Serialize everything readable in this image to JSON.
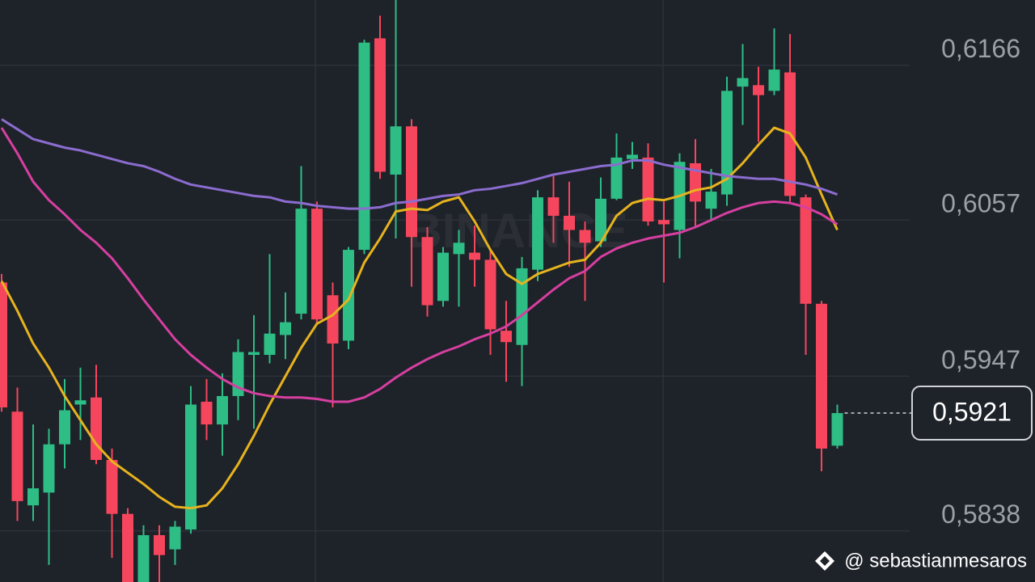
{
  "chart_data": {
    "type": "candlestick",
    "ylim": [
      0.5802,
      0.6212
    ],
    "yticks": [
      {
        "value": 0.6166,
        "label": "0,6166"
      },
      {
        "value": 0.6057,
        "label": "0,6057"
      },
      {
        "value": 0.5947,
        "label": "0,5947"
      },
      {
        "value": 0.5838,
        "label": "0,5838"
      }
    ],
    "grid": true,
    "up_color": "#2ebd85",
    "down_color": "#f6465d",
    "open": [
      0.6013,
      0.5922,
      0.5856,
      0.5865,
      0.5899,
      0.5927,
      0.5932,
      0.5888,
      0.585,
      0.5802,
      0.5835,
      0.5825,
      0.5839,
      0.5929,
      0.5913,
      0.5933,
      0.5962,
      0.5962,
      0.5976,
      0.5991,
      0.6065,
      0.6004,
      0.5972,
      0.6036,
      0.6185,
      0.6089,
      0.6123,
      0.6045,
      0.6,
      0.6033,
      0.6034,
      0.6029,
      0.5979,
      0.5969,
      0.6022,
      0.6073,
      0.606,
      0.605,
      0.6042,
      0.6072,
      0.61,
      0.6101,
      0.6057,
      0.605,
      0.6097,
      0.6065,
      0.6075,
      0.6151,
      0.6152,
      0.6148,
      0.6161,
      0.6073,
      0.5998,
      0.5898
    ],
    "high": [
      0.6019,
      0.5939,
      0.5913,
      0.591,
      0.5945,
      0.5953,
      0.5955,
      0.5896,
      0.5854,
      0.5842,
      0.5842,
      0.5845,
      0.594,
      0.5945,
      0.5949,
      0.5973,
      0.599,
      0.6033,
      0.6006,
      0.6095,
      0.607,
      0.6013,
      0.6038,
      0.6184,
      0.6201,
      0.6212,
      0.6128,
      0.6052,
      0.6038,
      0.605,
      0.6053,
      0.6036,
      0.6,
      0.6031,
      0.6078,
      0.6088,
      0.6084,
      0.6056,
      0.6087,
      0.6118,
      0.6112,
      0.6111,
      0.607,
      0.6104,
      0.6114,
      0.6093,
      0.6158,
      0.6181,
      0.6165,
      0.6192,
      0.6188,
      0.6075,
      0.6,
      0.5927
    ],
    "low": [
      0.5922,
      0.5845,
      0.5845,
      0.5814,
      0.5882,
      0.5902,
      0.5885,
      0.5819,
      0.5802,
      0.5802,
      0.5802,
      0.5814,
      0.5836,
      0.5902,
      0.5891,
      0.5916,
      0.591,
      0.5956,
      0.5959,
      0.5987,
      0.5984,
      0.5925,
      0.5966,
      0.6033,
      0.6086,
      0.6044,
      0.601,
      0.5989,
      0.5996,
      0.5996,
      0.601,
      0.5962,
      0.5943,
      0.594,
      0.6014,
      0.6041,
      0.6024,
      0.6,
      0.6038,
      0.6071,
      0.6093,
      0.6053,
      0.6013,
      0.603,
      0.6052,
      0.6056,
      0.6067,
      0.6124,
      0.6112,
      0.6145,
      0.607,
      0.5962,
      0.588,
      0.5896
    ],
    "close": [
      0.5925,
      0.5859,
      0.5868,
      0.5899,
      0.5923,
      0.593,
      0.5888,
      0.585,
      0.5802,
      0.5835,
      0.5821,
      0.5841,
      0.5927,
      0.5913,
      0.5933,
      0.5964,
      0.5964,
      0.5977,
      0.5985,
      0.6065,
      0.5987,
      0.597,
      0.6036,
      0.6182,
      0.6091,
      0.6123,
      0.6045,
      0.5997,
      0.6034,
      0.6041,
      0.6029,
      0.598,
      0.5971,
      0.6023,
      0.6073,
      0.606,
      0.605,
      0.6041,
      0.6072,
      0.6101,
      0.6103,
      0.6056,
      0.6054,
      0.6098,
      0.607,
      0.6077,
      0.6148,
      0.6157,
      0.6145,
      0.6163,
      0.6074,
      0.5998,
      0.5896,
      0.5921
    ],
    "lines": [
      {
        "color": "#e6b31e",
        "values": [
          0.6014,
          0.5993,
          0.597,
          0.5953,
          0.5933,
          0.5916,
          0.5899,
          0.5887,
          0.5879,
          0.5871,
          0.5862,
          0.5855,
          0.5854,
          0.5856,
          0.5868,
          0.5885,
          0.5905,
          0.5927,
          0.5947,
          0.5967,
          0.5984,
          0.599,
          0.6001,
          0.6027,
          0.6044,
          0.6063,
          0.6065,
          0.6064,
          0.607,
          0.6073,
          0.6056,
          0.6036,
          0.6019,
          0.6012,
          0.6019,
          0.6023,
          0.6027,
          0.6029,
          0.6041,
          0.606,
          0.6069,
          0.6072,
          0.6071,
          0.6074,
          0.6078,
          0.608,
          0.6086,
          0.6097,
          0.611,
          0.6122,
          0.6118,
          0.6101,
          0.6075,
          0.605
        ]
      },
      {
        "color": "#d63fa0",
        "values": [
          0.6122,
          0.6104,
          0.6084,
          0.6071,
          0.6061,
          0.605,
          0.6041,
          0.603,
          0.6016,
          0.6001,
          0.5987,
          0.5973,
          0.5962,
          0.5953,
          0.5945,
          0.5939,
          0.5935,
          0.5933,
          0.5932,
          0.5932,
          0.5931,
          0.5929,
          0.5929,
          0.5932,
          0.5938,
          0.5946,
          0.5953,
          0.5959,
          0.5964,
          0.5968,
          0.5973,
          0.5977,
          0.5982,
          0.599,
          0.5999,
          0.6008,
          0.6016,
          0.6021,
          0.6031,
          0.6037,
          0.6041,
          0.6044,
          0.6046,
          0.6048,
          0.6052,
          0.6057,
          0.6062,
          0.6066,
          0.6069,
          0.607,
          0.6069,
          0.6066,
          0.6061,
          0.6054
        ]
      },
      {
        "color": "#8b6ccf",
        "values": [
          0.6128,
          0.6121,
          0.6114,
          0.6111,
          0.6108,
          0.6106,
          0.6103,
          0.61,
          0.6097,
          0.6095,
          0.6091,
          0.6086,
          0.6082,
          0.608,
          0.6078,
          0.6076,
          0.6074,
          0.6073,
          0.607,
          0.6069,
          0.6067,
          0.6066,
          0.6065,
          0.6065,
          0.6066,
          0.6069,
          0.607,
          0.6072,
          0.6074,
          0.6075,
          0.6078,
          0.6079,
          0.6081,
          0.6083,
          0.6086,
          0.6089,
          0.6091,
          0.6093,
          0.6095,
          0.6096,
          0.6099,
          0.6099,
          0.6096,
          0.6094,
          0.6092,
          0.609,
          0.6088,
          0.6087,
          0.6086,
          0.6086,
          0.6084,
          0.6082,
          0.6079,
          0.6075
        ]
      }
    ],
    "last_price": {
      "value": 0.5921,
      "label": "0,5921"
    },
    "watermark": "BINANCE",
    "credit": "@ sebastianmesaros"
  }
}
